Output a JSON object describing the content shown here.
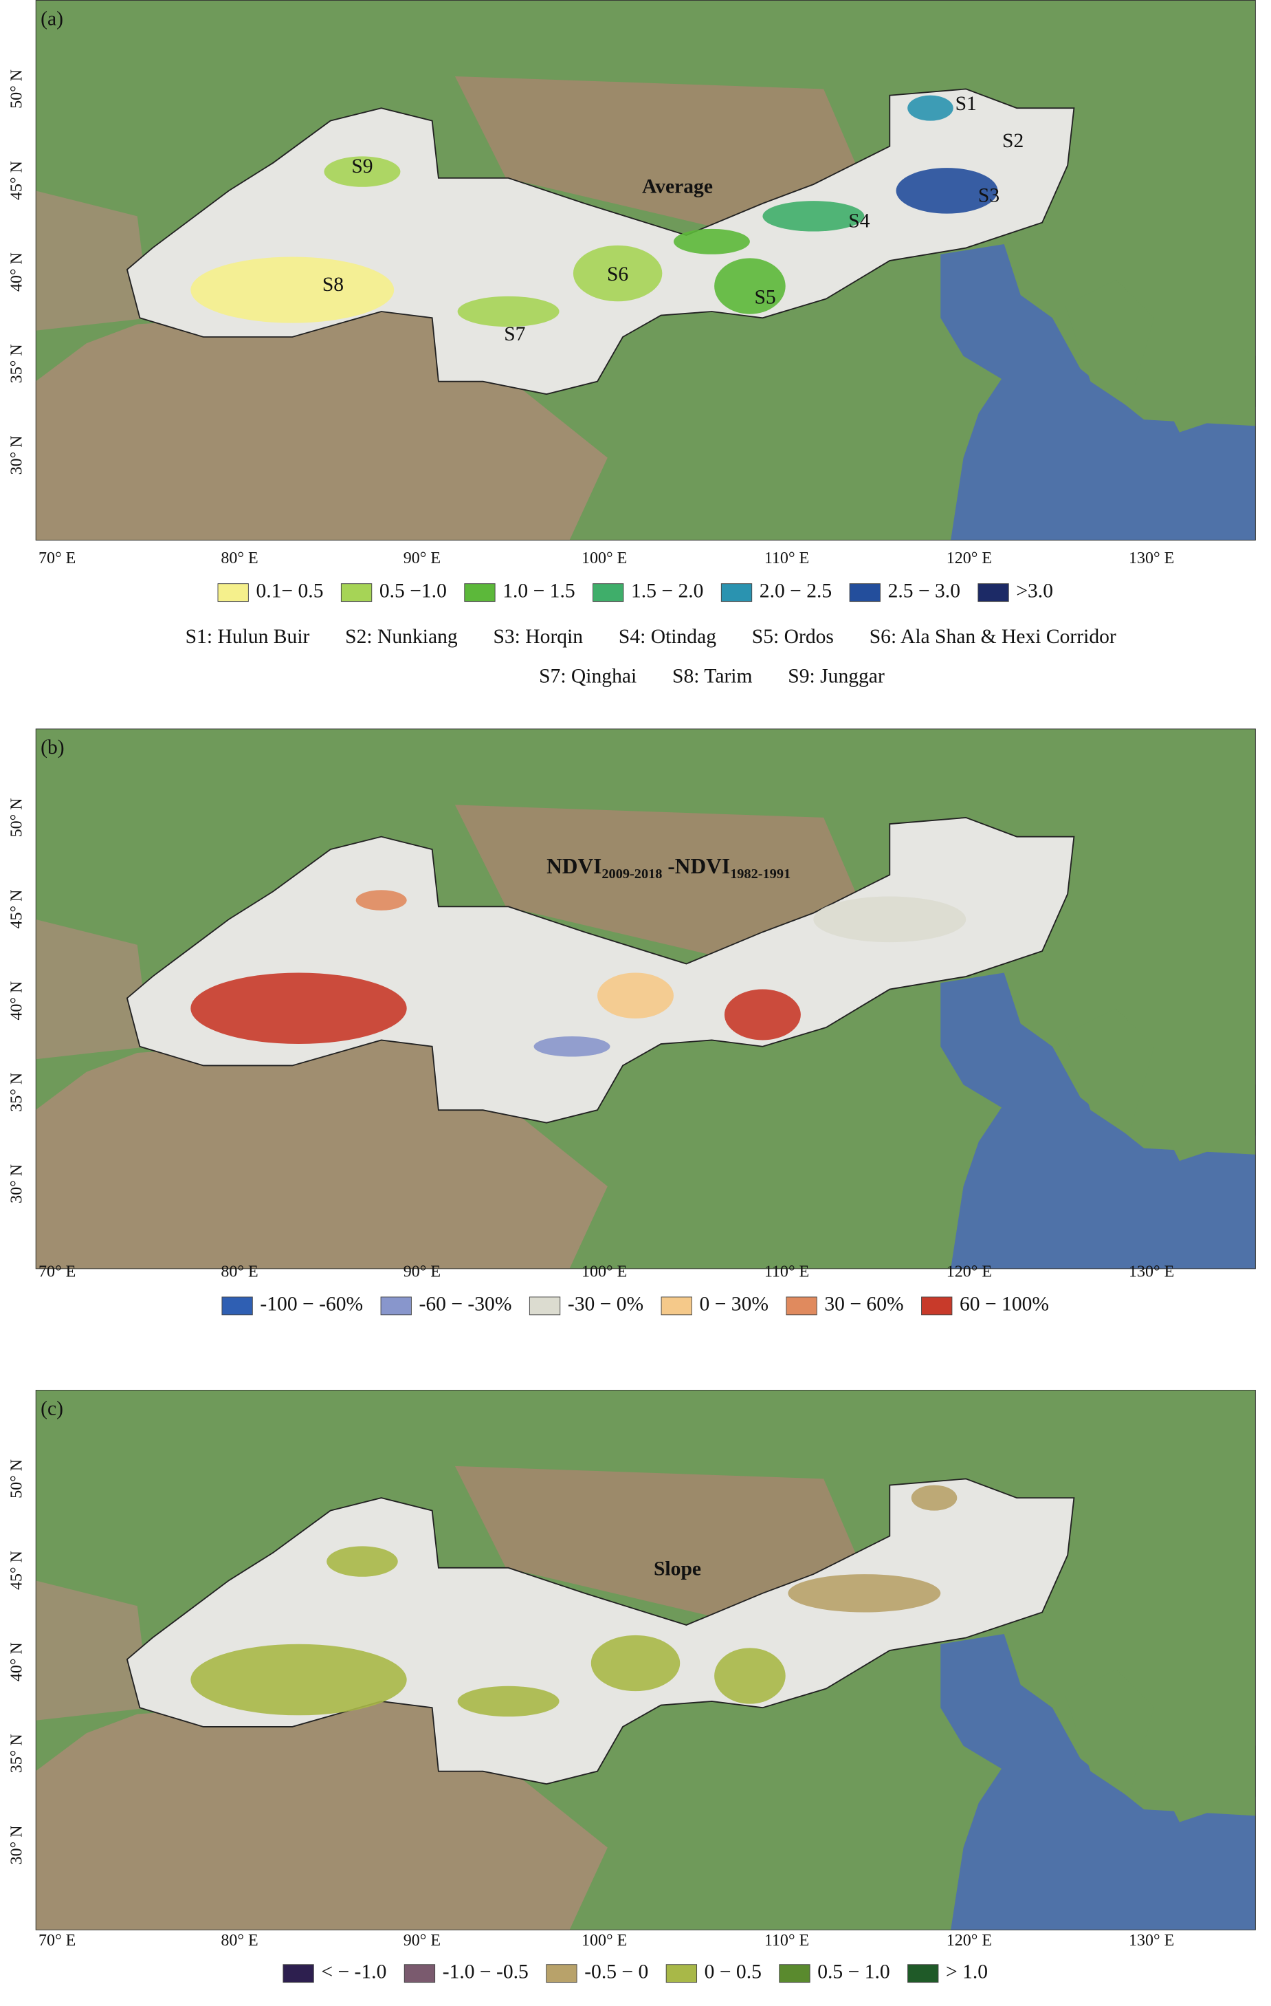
{
  "lat_ticks": [
    "50° N",
    "45° N",
    "40° N",
    "35° N",
    "30° N"
  ],
  "lon_ticks": [
    "70° E",
    "80° E",
    "90° E",
    "100° E",
    "110° E",
    "120° E",
    "130° E"
  ],
  "panels": [
    {
      "label": "(a)",
      "title": "Average",
      "legend": [
        {
          "label": "0.1− 0.5",
          "color": "#f5f08c"
        },
        {
          "label": "0.5 −1.0",
          "color": "#a6d456"
        },
        {
          "label": "1.0 − 1.5",
          "color": "#5cb83a"
        },
        {
          "label": "1.5 − 2.0",
          "color": "#3fae6a"
        },
        {
          "label": "2.0 − 2.5",
          "color": "#2a93b0"
        },
        {
          "label": "2.5 − 3.0",
          "color": "#234e9c"
        },
        {
          "label": ">3.0",
          "color": "#1c2a66"
        }
      ],
      "regions": [
        "S1",
        "S2",
        "S3",
        "S4",
        "S5",
        "S6",
        "S7",
        "S8",
        "S9"
      ],
      "region_names": [
        [
          "S1: Hulun Buir",
          "S2: Nunkiang",
          "S3: Horqin",
          "S4: Otindag",
          "S5: Ordos",
          "S6: Ala Shan & Hexi Corridor"
        ],
        [
          "S7: Qinghai",
          "S8: Tarim",
          "S9: Junggar"
        ]
      ]
    },
    {
      "label": "(b)",
      "title": {
        "main": "NDVI",
        "sub1": "2009-2018",
        "mid": " -NDVI",
        "sub2": "1982-1991"
      },
      "legend": [
        {
          "label": "-100 − -60%",
          "color": "#2f5fb3"
        },
        {
          "label": "-60 − -30%",
          "color": "#8896cc"
        },
        {
          "label": "-30 − 0%",
          "color": "#dcdcd0"
        },
        {
          "label": "0 − 30%",
          "color": "#f5c98a"
        },
        {
          "label": "30 − 60%",
          "color": "#e08a5e"
        },
        {
          "label": "60 − 100%",
          "color": "#c83a2a"
        }
      ]
    },
    {
      "label": "(c)",
      "title": "Slope",
      "legend": [
        {
          "label": "< − -1.0",
          "color": "#2d1f4f"
        },
        {
          "label": "-1.0 − -0.5",
          "color": "#7a5a6e"
        },
        {
          "label": "-0.5 − 0",
          "color": "#b8a26a"
        },
        {
          "label": "0 − 0.5",
          "color": "#a8b848"
        },
        {
          "label": "0.5 − 1.0",
          "color": "#5a8a2e"
        },
        {
          "label": "> 1.0",
          "color": "#1f5a28"
        }
      ]
    }
  ]
}
